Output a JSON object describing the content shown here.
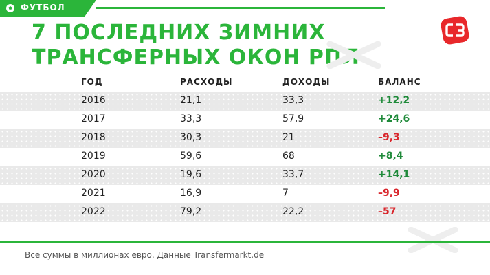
{
  "header": {
    "tag": "ФУТБОЛ",
    "title_line1": "7 ПОСЛЕДНИХ ЗИМНИХ",
    "title_line2": "ТРАНСФЕРНЫХ ОКОН РПЛ"
  },
  "colors": {
    "brand_green": "#2bb53a",
    "logo_red": "#e8282b",
    "positive": "#1f8a3a",
    "negative": "#d9262c"
  },
  "icons": [
    "ball-icon",
    "sport-express-logo",
    "x-watermark-icon"
  ],
  "table": {
    "headers": [
      "ГОД",
      "РАСХОДЫ",
      "ДОХОДЫ",
      "БАЛАНС"
    ],
    "rows": [
      {
        "year": "2016",
        "expenses": "21,1",
        "income": "33,3",
        "balance": "+12,2",
        "sign": "pos"
      },
      {
        "year": "2017",
        "expenses": "33,3",
        "income": "57,9",
        "balance": "+24,6",
        "sign": "pos"
      },
      {
        "year": "2018",
        "expenses": "30,3",
        "income": "21",
        "balance": "–9,3",
        "sign": "neg"
      },
      {
        "year": "2019",
        "expenses": "59,6",
        "income": "68",
        "balance": "+8,4",
        "sign": "pos"
      },
      {
        "year": "2020",
        "expenses": "19,6",
        "income": "33,7",
        "balance": "+14,1",
        "sign": "pos"
      },
      {
        "year": "2021",
        "expenses": "16,9",
        "income": "7",
        "balance": "–9,9",
        "sign": "neg"
      },
      {
        "year": "2022",
        "expenses": "79,2",
        "income": "22,2",
        "balance": "–57",
        "sign": "neg"
      }
    ]
  },
  "footnote": "Все суммы в миллионах евро. Данные Transfermarkt.de"
}
